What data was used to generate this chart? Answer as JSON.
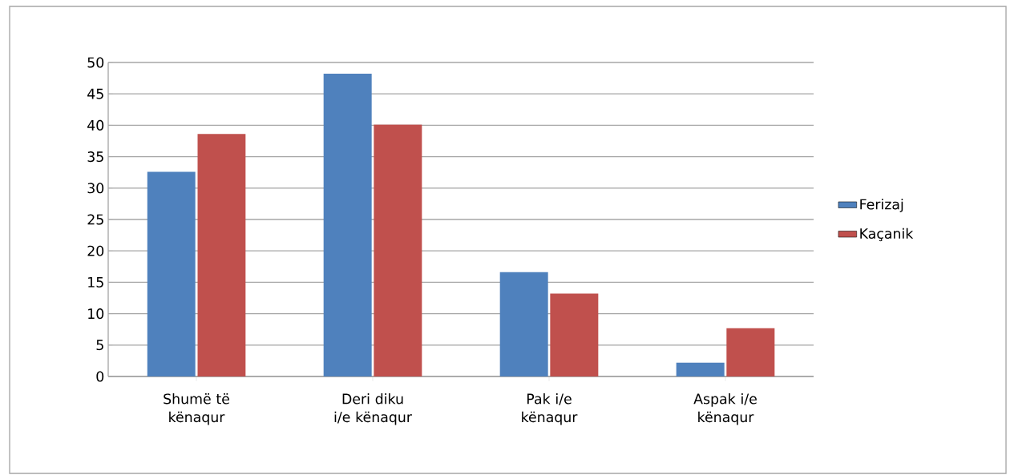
{
  "chart_data": {
    "type": "bar",
    "categories": [
      "Shumë të kënaqur",
      "Deri diku i/e kënaqur",
      "Pak i/e kënaqur",
      "Aspak i/e kënaqur"
    ],
    "series": [
      {
        "name": "Ferizaj",
        "color": "#4f81bd",
        "values": [
          32.6,
          48.2,
          16.6,
          2.2
        ]
      },
      {
        "name": "Kaçanik",
        "color": "#c0504d",
        "values": [
          38.6,
          40.1,
          13.2,
          7.7
        ]
      }
    ],
    "ylim": [
      0,
      50
    ],
    "yticks": [
      0,
      5,
      10,
      15,
      20,
      25,
      30,
      35,
      40,
      45,
      50
    ],
    "grid": "y",
    "legend": "right"
  }
}
